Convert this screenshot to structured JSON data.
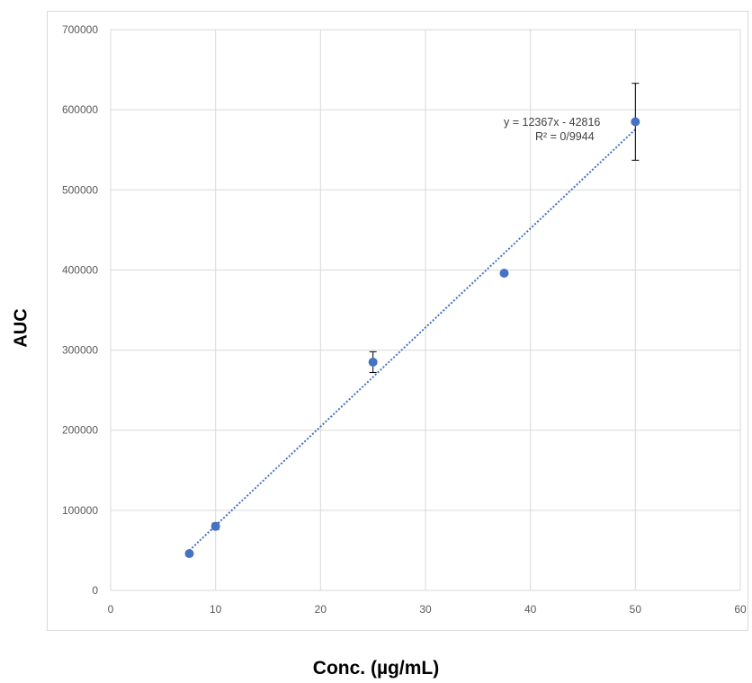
{
  "chart_data": {
    "type": "scatter",
    "title": "",
    "xlabel": "Conc. (µg/mL)",
    "ylabel": "AUC",
    "xlim": [
      0,
      60
    ],
    "ylim": [
      0,
      700000
    ],
    "x_ticks": [
      "0",
      "10",
      "20",
      "30",
      "40",
      "50",
      "60"
    ],
    "y_ticks": [
      "0",
      "100000",
      "200000",
      "300000",
      "400000",
      "500000",
      "600000",
      "700000"
    ],
    "grid": true,
    "points": [
      {
        "x": 7.5,
        "y": 46000,
        "err": 2000
      },
      {
        "x": 10,
        "y": 80000,
        "err": 4000
      },
      {
        "x": 25,
        "y": 285000,
        "err": 13000
      },
      {
        "x": 37.5,
        "y": 396000,
        "err": 2000
      },
      {
        "x": 50,
        "y": 585000,
        "err": 48000
      }
    ],
    "trendline": {
      "type": "linear",
      "slope": 12367,
      "intercept": -42816,
      "x_range": [
        7.5,
        50
      ],
      "equation": "y = 12367x - 42816",
      "r2": "R² = 0/9944"
    },
    "colors": {
      "marker": "#4472c4",
      "trendline": "#4472c4",
      "grid": "#d9d9d9",
      "errorbar": "#000000"
    }
  }
}
